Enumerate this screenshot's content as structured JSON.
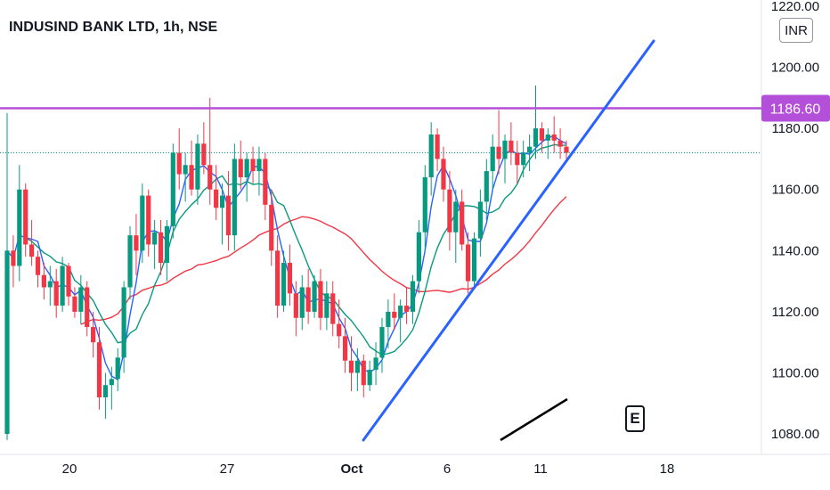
{
  "header": {
    "title": "INDUSIND BANK LTD, 1h, NSE"
  },
  "currency": "INR",
  "event_marker": "E",
  "colors": {
    "up": "#089981",
    "down": "#f23645",
    "ma_fast": "#2962ff",
    "ma_mid": "#089981",
    "ma_slow": "#f23645",
    "resistance": "#b44fd9",
    "trendline": "#2962ff",
    "last_price": "#089981"
  },
  "chart_data": {
    "type": "candlestick",
    "y_axis": {
      "min": 1078,
      "max": 1222,
      "ticks": [
        1220,
        1200,
        1180,
        1160,
        1140,
        1120,
        1100,
        1080
      ],
      "tick_labels": [
        "1220.00",
        "1200.00",
        "1180.00",
        "1160.00",
        "1140.00",
        "1120.00",
        "1100.00",
        "1080.00"
      ]
    },
    "x_axis": {
      "ticks": [
        "20",
        "27",
        "Oct",
        "6",
        "11",
        "18"
      ]
    },
    "resistance": {
      "value": 1186.6,
      "label": "1186.60"
    },
    "last_price": 1172,
    "candles": [
      [
        1080,
        1185,
        1078,
        1140
      ],
      [
        1140,
        1145,
        1128,
        1135
      ],
      [
        1135,
        1168,
        1130,
        1160
      ],
      [
        1160,
        1162,
        1138,
        1142
      ],
      [
        1142,
        1150,
        1135,
        1138
      ],
      [
        1138,
        1140,
        1128,
        1132
      ],
      [
        1132,
        1136,
        1124,
        1128
      ],
      [
        1128,
        1135,
        1122,
        1130
      ],
      [
        1130,
        1134,
        1118,
        1122
      ],
      [
        1122,
        1138,
        1120,
        1135
      ],
      [
        1135,
        1136,
        1122,
        1125
      ],
      [
        1125,
        1128,
        1118,
        1120
      ],
      [
        1120,
        1132,
        1116,
        1128
      ],
      [
        1128,
        1130,
        1112,
        1115
      ],
      [
        1115,
        1120,
        1105,
        1110
      ],
      [
        1110,
        1115,
        1088,
        1092
      ],
      [
        1092,
        1100,
        1085,
        1096
      ],
      [
        1096,
        1102,
        1088,
        1098
      ],
      [
        1098,
        1108,
        1094,
        1105
      ],
      [
        1105,
        1130,
        1100,
        1128
      ],
      [
        1128,
        1148,
        1124,
        1145
      ],
      [
        1145,
        1152,
        1132,
        1140
      ],
      [
        1140,
        1162,
        1136,
        1158
      ],
      [
        1158,
        1160,
        1138,
        1142
      ],
      [
        1142,
        1150,
        1134,
        1146
      ],
      [
        1146,
        1150,
        1132,
        1136
      ],
      [
        1136,
        1150,
        1130,
        1148
      ],
      [
        1148,
        1175,
        1144,
        1172
      ],
      [
        1172,
        1180,
        1160,
        1165
      ],
      [
        1165,
        1172,
        1156,
        1168
      ],
      [
        1168,
        1176,
        1158,
        1160
      ],
      [
        1160,
        1178,
        1155,
        1175
      ],
      [
        1175,
        1182,
        1165,
        1168
      ],
      [
        1168,
        1190,
        1155,
        1160
      ],
      [
        1160,
        1168,
        1150,
        1154
      ],
      [
        1154,
        1162,
        1142,
        1158
      ],
      [
        1158,
        1166,
        1140,
        1145
      ],
      [
        1145,
        1175,
        1140,
        1170
      ],
      [
        1170,
        1176,
        1160,
        1164
      ],
      [
        1164,
        1172,
        1156,
        1170
      ],
      [
        1170,
        1174,
        1162,
        1166
      ],
      [
        1166,
        1174,
        1158,
        1170
      ],
      [
        1170,
        1172,
        1150,
        1155
      ],
      [
        1155,
        1160,
        1135,
        1140
      ],
      [
        1140,
        1145,
        1118,
        1122
      ],
      [
        1122,
        1140,
        1120,
        1136
      ],
      [
        1136,
        1142,
        1122,
        1126
      ],
      [
        1126,
        1130,
        1112,
        1118
      ],
      [
        1118,
        1132,
        1114,
        1128
      ],
      [
        1128,
        1134,
        1116,
        1120
      ],
      [
        1120,
        1132,
        1118,
        1130
      ],
      [
        1130,
        1134,
        1114,
        1118
      ],
      [
        1118,
        1130,
        1114,
        1126
      ],
      [
        1126,
        1130,
        1112,
        1116
      ],
      [
        1116,
        1124,
        1108,
        1112
      ],
      [
        1112,
        1118,
        1100,
        1104
      ],
      [
        1104,
        1112,
        1094,
        1100
      ],
      [
        1100,
        1108,
        1094,
        1104
      ],
      [
        1104,
        1106,
        1092,
        1096
      ],
      [
        1096,
        1104,
        1094,
        1101
      ],
      [
        1101,
        1110,
        1096,
        1105
      ],
      [
        1105,
        1118,
        1100,
        1115
      ],
      [
        1115,
        1124,
        1108,
        1120
      ],
      [
        1120,
        1126,
        1114,
        1118
      ],
      [
        1118,
        1124,
        1110,
        1122
      ],
      [
        1122,
        1128,
        1116,
        1120
      ],
      [
        1120,
        1132,
        1116,
        1130
      ],
      [
        1130,
        1150,
        1126,
        1146
      ],
      [
        1146,
        1168,
        1140,
        1164
      ],
      [
        1164,
        1182,
        1158,
        1178
      ],
      [
        1178,
        1180,
        1166,
        1170
      ],
      [
        1170,
        1174,
        1156,
        1160
      ],
      [
        1160,
        1166,
        1140,
        1146
      ],
      [
        1146,
        1160,
        1136,
        1156
      ],
      [
        1156,
        1160,
        1140,
        1142
      ],
      [
        1142,
        1146,
        1126,
        1130
      ],
      [
        1130,
        1146,
        1128,
        1144
      ],
      [
        1144,
        1160,
        1138,
        1156
      ],
      [
        1156,
        1170,
        1150,
        1166
      ],
      [
        1166,
        1178,
        1160,
        1174
      ],
      [
        1174,
        1186,
        1165,
        1170
      ],
      [
        1170,
        1178,
        1162,
        1176
      ],
      [
        1176,
        1182,
        1168,
        1172
      ],
      [
        1172,
        1176,
        1162,
        1168
      ],
      [
        1168,
        1176,
        1164,
        1172
      ],
      [
        1172,
        1178,
        1166,
        1174
      ],
      [
        1174,
        1194,
        1170,
        1180
      ],
      [
        1180,
        1182,
        1172,
        1176
      ],
      [
        1176,
        1180,
        1170,
        1178
      ],
      [
        1178,
        1184,
        1172,
        1176
      ],
      [
        1176,
        1180,
        1170,
        1174
      ],
      [
        1174,
        1176,
        1170,
        1172
      ]
    ]
  }
}
